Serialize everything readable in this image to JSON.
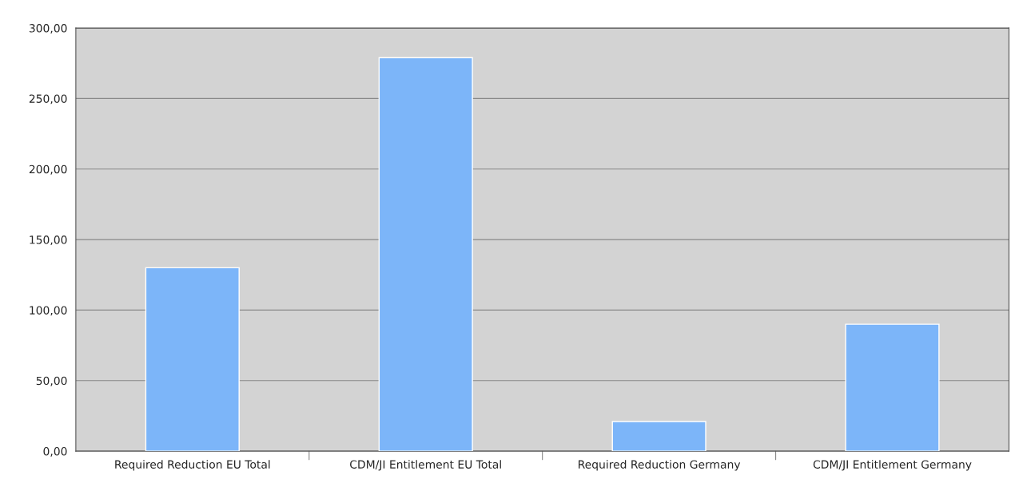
{
  "chart_data": {
    "type": "bar",
    "categories": [
      "Required Reduction EU Total",
      "CDM/JI Entitlement EU Total",
      "Required Reduction Germany",
      "CDM/JI Entitlement Germany"
    ],
    "values": [
      130,
      279,
      21,
      90
    ],
    "color": "#7cb5f9",
    "ylim": [
      0,
      300
    ],
    "yticks": [
      {
        "value": 0,
        "label": "0,00"
      },
      {
        "value": 50,
        "label": "50,00"
      },
      {
        "value": 100,
        "label": "100,00"
      },
      {
        "value": 150,
        "label": "150,00"
      },
      {
        "value": 200,
        "label": "200,00"
      },
      {
        "value": 250,
        "label": "250,00"
      },
      {
        "value": 300,
        "label": "300,00"
      }
    ],
    "grid": "y"
  }
}
